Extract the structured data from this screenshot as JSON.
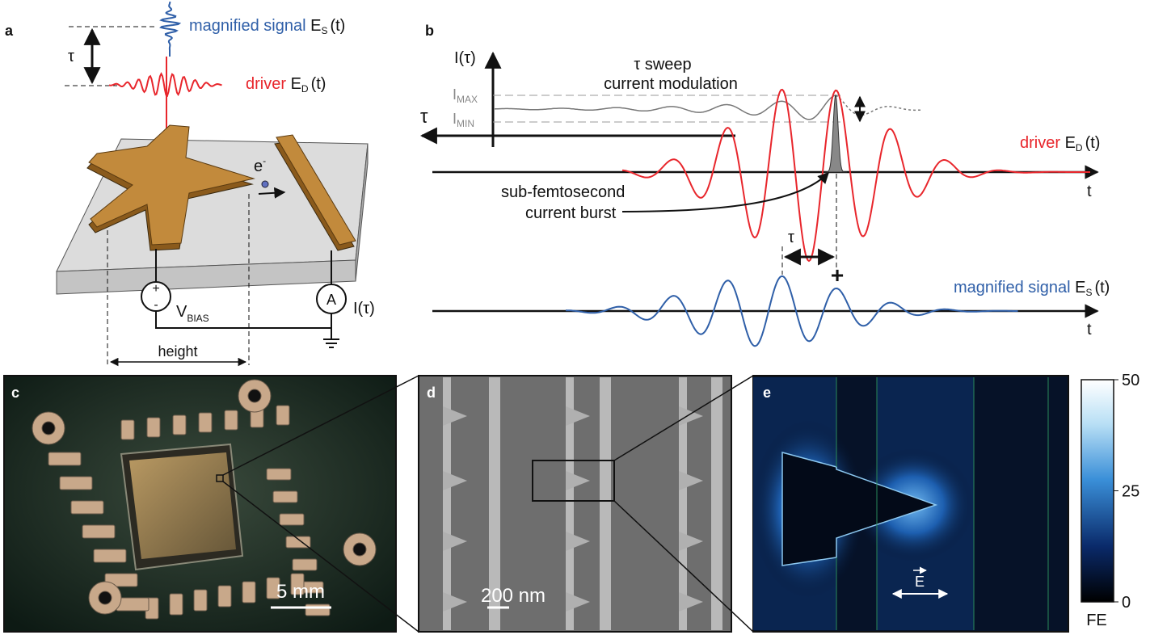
{
  "panel_a": {
    "label": "a",
    "tau": "τ",
    "signal_label": "magnified signal",
    "signal_symbol": "E",
    "signal_sub": "S",
    "signal_arg": "(t)",
    "driver_label": "driver",
    "driver_symbol": "E",
    "driver_sub": "D",
    "driver_arg": "(t)",
    "electron": "e",
    "electron_sup": "-",
    "plus": "+",
    "minus": "-",
    "bias": "V",
    "bias_sub": "BIAS",
    "ammeter": "A",
    "current": "I(τ)",
    "height": "height"
  },
  "panel_b": {
    "label": "b",
    "current_axis": "I(τ)",
    "tau_axis": "τ",
    "sweep_line1": "τ sweep",
    "sweep_line2": "current modulation",
    "imax": "I",
    "imax_sub": "MAX",
    "imin": "I",
    "imin_sub": "MIN",
    "driver_label": "driver",
    "driver_symbol": "E",
    "driver_sub": "D",
    "driver_arg": "(t)",
    "time_axis_1": "t",
    "burst_line1": "sub-femtosecond",
    "burst_line2": "current burst",
    "delay": "τ",
    "plus": "+",
    "signal_label": "magnified signal",
    "signal_symbol": "E",
    "signal_sub": "S",
    "signal_arg": "(t)",
    "time_axis_2": "t"
  },
  "panel_c": {
    "label": "c",
    "scale_bar": "5 mm"
  },
  "panel_d": {
    "label": "d",
    "scale_bar": "200 nm"
  },
  "panel_e": {
    "label": "e",
    "field": "E",
    "colorbar": {
      "range": [
        0,
        50
      ],
      "ticks": [
        50,
        25,
        0
      ],
      "label": "FE"
    }
  }
}
